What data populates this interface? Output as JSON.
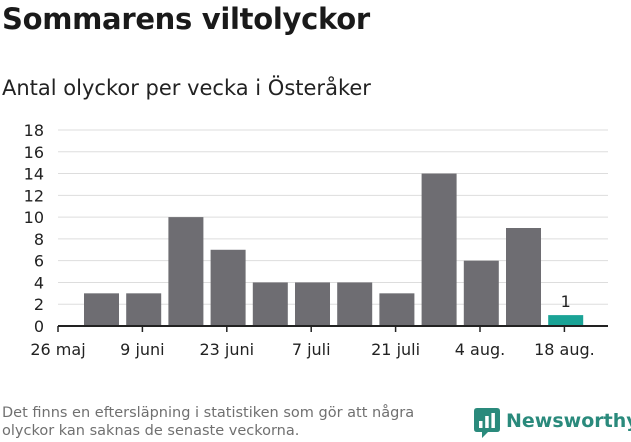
{
  "title": "Sommarens viltolyckor",
  "subtitle": "Antal olyckor per vecka i Österåker",
  "footnote": "Det finns en eftersläpning i statistiken som gör att några olyckor kan saknas de senaste veckorna.",
  "brand": {
    "name": "Newsworthy",
    "logo_icon": "bar-chart-speech-bubble-icon"
  },
  "colors": {
    "bar": "#6e6d72",
    "highlight": "#1aa396",
    "grid": "#dddddd",
    "axis": "#222222",
    "brand": "#2a8a7c"
  },
  "chart_data": {
    "type": "bar",
    "title": "Antal olyckor per vecka i Österåker",
    "xlabel": "",
    "ylabel": "",
    "ylim": [
      0,
      18
    ],
    "yticks": [
      0,
      2,
      4,
      6,
      8,
      10,
      12,
      14,
      16,
      18
    ],
    "grid": true,
    "x_tick_labels": [
      "26 maj",
      "9 juni",
      "23 juni",
      "7 juli",
      "21 juli",
      "4 aug.",
      "18 aug."
    ],
    "values": [
      3,
      3,
      10,
      7,
      4,
      4,
      4,
      3,
      14,
      6,
      9,
      1
    ],
    "highlight_index": 11,
    "data_labels": [
      {
        "index": 11,
        "text": "1"
      }
    ]
  }
}
